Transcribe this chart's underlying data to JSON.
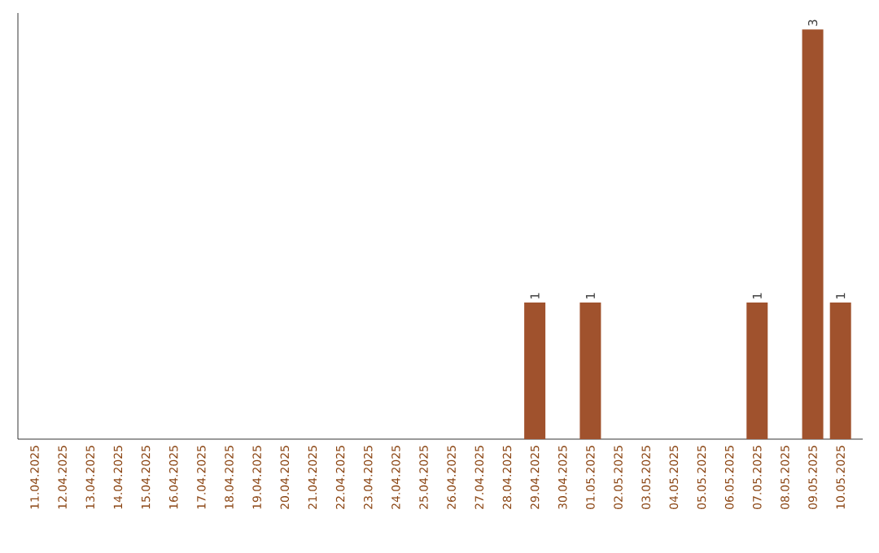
{
  "chart_data": {
    "type": "bar",
    "categories": [
      "11.04.2025",
      "12.04.2025",
      "13.04.2025",
      "14.04.2025",
      "15.04.2025",
      "16.04.2025",
      "17.04.2025",
      "18.04.2025",
      "19.04.2025",
      "20.04.2025",
      "21.04.2025",
      "22.04.2025",
      "23.04.2025",
      "24.04.2025",
      "25.04.2025",
      "26.04.2025",
      "27.04.2025",
      "28.04.2025",
      "29.04.2025",
      "30.04.2025",
      "01.05.2025",
      "02.05.2025",
      "03.05.2025",
      "04.05.2025",
      "05.05.2025",
      "06.05.2025",
      "07.05.2025",
      "08.05.2025",
      "09.05.2025",
      "10.05.2025"
    ],
    "values": [
      null,
      null,
      null,
      null,
      null,
      null,
      null,
      null,
      null,
      null,
      null,
      null,
      null,
      null,
      null,
      null,
      null,
      null,
      1,
      null,
      1,
      null,
      null,
      null,
      null,
      null,
      1,
      null,
      3,
      1
    ],
    "value_labels": [
      null,
      null,
      null,
      null,
      null,
      null,
      null,
      null,
      null,
      null,
      null,
      null,
      null,
      null,
      null,
      null,
      null,
      null,
      "1",
      null,
      "1",
      null,
      null,
      null,
      null,
      null,
      "1",
      null,
      "3",
      "1"
    ],
    "color": "#a0522d",
    "tick_labels": "x"
  }
}
